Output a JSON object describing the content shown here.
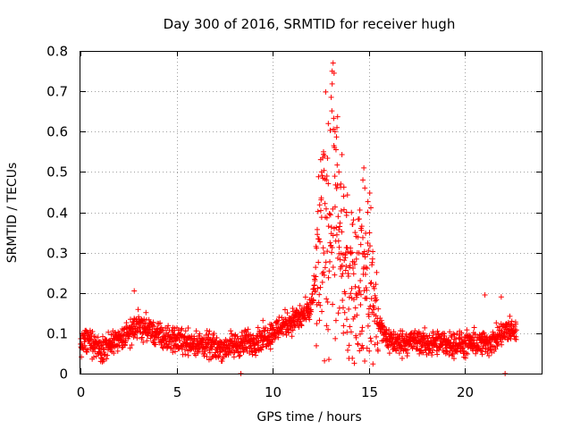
{
  "chart_data": {
    "type": "scatter",
    "title": "Day 300 of 2016, SRMTID for receiver hugh",
    "xlabel": "GPS time / hours",
    "ylabel": "SRMTID / TECUs",
    "xlim": [
      0,
      24
    ],
    "ylim": [
      0,
      0.8
    ],
    "xticks": [
      0,
      5,
      10,
      15,
      20
    ],
    "xtick_labels": [
      "0",
      "5",
      "10",
      "15",
      "20"
    ],
    "yticks": [
      0,
      0.1,
      0.2,
      0.3,
      0.4,
      0.5,
      0.6,
      0.7,
      0.8
    ],
    "ytick_labels": [
      "0",
      "0.1",
      "0.2",
      "0.3",
      "0.4",
      "0.5",
      "0.6",
      "0.7",
      "0.8"
    ],
    "grid": true,
    "marker": "+",
    "color": "#ff0000",
    "data_range_hours": [
      0,
      22.7
    ],
    "profile": [
      [
        0.0,
        0.075
      ],
      [
        0.5,
        0.08
      ],
      [
        1.0,
        0.065
      ],
      [
        1.5,
        0.07
      ],
      [
        2.0,
        0.08
      ],
      [
        2.5,
        0.1
      ],
      [
        3.0,
        0.12
      ],
      [
        3.5,
        0.11
      ],
      [
        4.0,
        0.095
      ],
      [
        4.5,
        0.085
      ],
      [
        5.0,
        0.085
      ],
      [
        5.5,
        0.08
      ],
      [
        6.0,
        0.075
      ],
      [
        6.5,
        0.07
      ],
      [
        7.0,
        0.065
      ],
      [
        7.5,
        0.065
      ],
      [
        8.0,
        0.07
      ],
      [
        8.5,
        0.075
      ],
      [
        9.0,
        0.08
      ],
      [
        9.5,
        0.09
      ],
      [
        10.0,
        0.1
      ],
      [
        10.5,
        0.12
      ],
      [
        11.0,
        0.13
      ],
      [
        11.5,
        0.14
      ],
      [
        12.0,
        0.16
      ],
      [
        12.5,
        0.3
      ],
      [
        13.0,
        0.42
      ],
      [
        13.5,
        0.3
      ],
      [
        14.0,
        0.2
      ],
      [
        14.5,
        0.22
      ],
      [
        15.0,
        0.25
      ],
      [
        15.5,
        0.12
      ],
      [
        16.0,
        0.085
      ],
      [
        16.5,
        0.075
      ],
      [
        17.0,
        0.08
      ],
      [
        17.5,
        0.08
      ],
      [
        18.0,
        0.075
      ],
      [
        18.5,
        0.075
      ],
      [
        19.0,
        0.075
      ],
      [
        19.5,
        0.075
      ],
      [
        20.0,
        0.07
      ],
      [
        20.5,
        0.075
      ],
      [
        21.0,
        0.075
      ],
      [
        21.5,
        0.08
      ],
      [
        22.0,
        0.1
      ],
      [
        22.5,
        0.11
      ],
      [
        22.7,
        0.1
      ]
    ],
    "outliers": [
      [
        12.55,
        0.5
      ],
      [
        12.65,
        0.55
      ],
      [
        12.7,
        0.54
      ],
      [
        12.8,
        0.48
      ],
      [
        12.9,
        0.62
      ],
      [
        13.05,
        0.685
      ],
      [
        13.1,
        0.75
      ],
      [
        13.15,
        0.77
      ],
      [
        13.2,
        0.745
      ],
      [
        13.25,
        0.6
      ],
      [
        13.3,
        0.555
      ],
      [
        13.35,
        0.61
      ],
      [
        13.45,
        0.5
      ],
      [
        13.55,
        0.47
      ],
      [
        13.7,
        0.44
      ],
      [
        13.85,
        0.4
      ],
      [
        14.15,
        0.37
      ],
      [
        14.35,
        0.34
      ],
      [
        14.6,
        0.36
      ],
      [
        14.7,
        0.48
      ],
      [
        14.75,
        0.51
      ],
      [
        14.8,
        0.46
      ],
      [
        14.95,
        0.4
      ],
      [
        2.8,
        0.205
      ],
      [
        21.05,
        0.195
      ],
      [
        21.9,
        0.19
      ],
      [
        8.35,
        0.0
      ],
      [
        22.1,
        0.0
      ]
    ]
  }
}
